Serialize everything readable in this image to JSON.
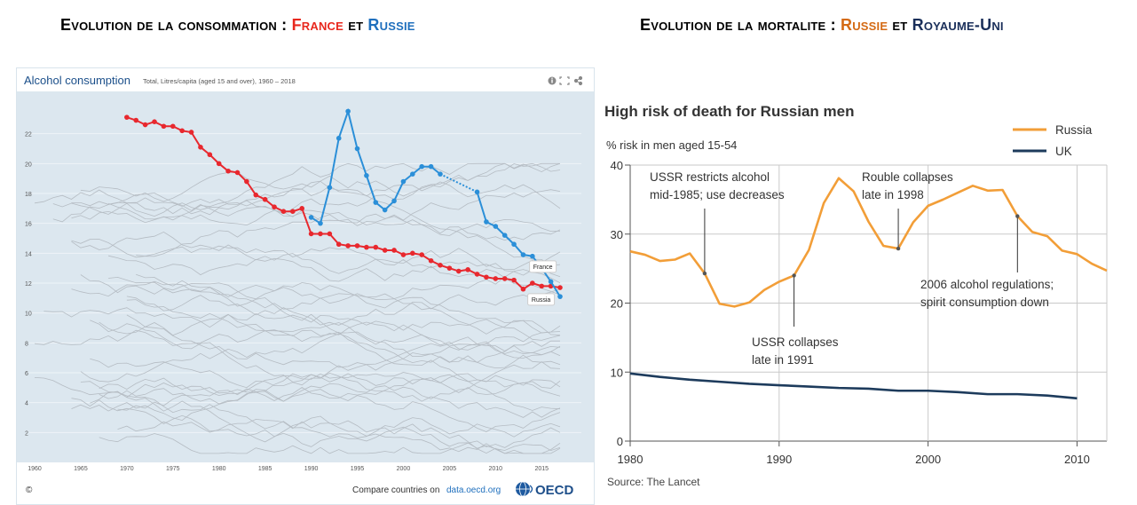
{
  "headings": {
    "left": {
      "prefix": "Evolution de la consommation : ",
      "a": "France",
      "mid": " et ",
      "b": "Russie"
    },
    "right": {
      "prefix": "Evolution de la mortalite : ",
      "a": "Russie",
      "mid": " et ",
      "b": "Royaume-Uni"
    }
  },
  "oecd": {
    "title": "Alcohol consumption",
    "subtitle": "Total, Litres/capita (aged 15 and over), 1960 – 2018",
    "footer_left": "©",
    "footer_compare": "Compare countries on",
    "footer_link": "data.oecd.org",
    "logo_text": "OECD",
    "colors": {
      "france": "#e8282e",
      "russia": "#2b8fd8",
      "other": "#b5bcc3",
      "bg": "#dce7ef"
    }
  },
  "bbc": {
    "title": "High risk of death for Russian men",
    "subtitle": "% risk in men aged 15-54",
    "source": "Source: The Lancet",
    "colors": {
      "russia": "#f29e38",
      "uk": "#1d3b5c"
    },
    "annotations": [
      {
        "id": "ann1",
        "lines": [
          "USSR restricts alcohol",
          "mid-1985; use decreases"
        ]
      },
      {
        "id": "ann2",
        "lines": [
          "Rouble collapses",
          "late in 1998"
        ]
      },
      {
        "id": "ann3",
        "lines": [
          "USSR collapses",
          "late in 1991"
        ]
      },
      {
        "id": "ann4",
        "lines": [
          "2006 alcohol regulations;",
          "spirit consumption down"
        ]
      }
    ]
  },
  "chart_data": [
    {
      "type": "line",
      "title": "Alcohol consumption",
      "subtitle": "Total, Litres/capita (aged 15 and over), 1960 – 2018",
      "xlim": [
        1960,
        2018
      ],
      "ylim": [
        0,
        24
      ],
      "xticks": [
        1960,
        1965,
        1970,
        1975,
        1980,
        1985,
        1990,
        1995,
        2000,
        2005,
        2010,
        2015
      ],
      "yticks": [
        2,
        4,
        6,
        8,
        10,
        12,
        14,
        16,
        18,
        20,
        22
      ],
      "grid": true,
      "series": [
        {
          "name": "France",
          "x": [
            1970,
            1971,
            1972,
            1973,
            1974,
            1975,
            1976,
            1977,
            1978,
            1979,
            1980,
            1981,
            1982,
            1983,
            1984,
            1985,
            1986,
            1987,
            1988,
            1989,
            1990,
            1991,
            1992,
            1993,
            1994,
            1995,
            1996,
            1997,
            1998,
            1999,
            2000,
            2001,
            2002,
            2003,
            2004,
            2005,
            2006,
            2007,
            2008,
            2009,
            2010,
            2011,
            2012,
            2013,
            2014,
            2015,
            2016,
            2017
          ],
          "values": [
            23.1,
            22.9,
            22.6,
            22.8,
            22.5,
            22.5,
            22.2,
            22.1,
            21.1,
            20.6,
            20.0,
            19.5,
            19.4,
            18.8,
            17.9,
            17.6,
            17.1,
            16.8,
            16.8,
            17.0,
            15.3,
            15.3,
            15.3,
            14.6,
            14.5,
            14.5,
            14.4,
            14.4,
            14.2,
            14.2,
            13.9,
            14.0,
            13.9,
            13.5,
            13.2,
            13.0,
            12.8,
            12.9,
            12.6,
            12.4,
            12.3,
            12.3,
            12.2,
            11.6,
            12.0,
            11.8,
            11.8,
            11.7
          ]
        },
        {
          "name": "Russia",
          "x": [
            1990,
            1991,
            1992,
            1993,
            1994,
            1995,
            1996,
            1997,
            1998,
            1999,
            2000,
            2001,
            2002,
            2003,
            2004,
            2008,
            2009,
            2010,
            2011,
            2012,
            2013,
            2014,
            2015,
            2016,
            2017
          ],
          "values": [
            16.4,
            16.0,
            18.4,
            21.7,
            23.5,
            21.0,
            19.2,
            17.4,
            16.9,
            17.5,
            18.8,
            19.3,
            19.8,
            19.8,
            19.3,
            18.1,
            16.1,
            15.8,
            15.2,
            14.6,
            13.9,
            13.8,
            13.0,
            12.1,
            11.1
          ]
        }
      ]
    },
    {
      "type": "line",
      "title": "High risk of death for Russian men",
      "ylabel": "% risk in men aged 15-54",
      "xlim": [
        1980,
        2012
      ],
      "ylim": [
        0,
        40
      ],
      "xticks": [
        1980,
        1990,
        2000,
        2010
      ],
      "yticks": [
        0,
        10,
        20,
        30,
        40
      ],
      "grid": true,
      "legend": "top-right",
      "series": [
        {
          "name": "Russia",
          "x": [
            1980,
            1981,
            1982,
            1983,
            1984,
            1985,
            1986,
            1987,
            1988,
            1989,
            1990,
            1991,
            1992,
            1993,
            1994,
            1995,
            1996,
            1997,
            1998,
            1999,
            2000,
            2001,
            2002,
            2003,
            2004,
            2005,
            2006,
            2007,
            2008,
            2009,
            2010,
            2011,
            2012
          ],
          "values": [
            27.5,
            27.0,
            26.1,
            26.3,
            27.2,
            24.3,
            19.9,
            19.5,
            20.1,
            21.9,
            23.1,
            24.0,
            27.7,
            34.5,
            38.1,
            36.2,
            31.8,
            28.3,
            27.9,
            31.7,
            34.1,
            35.0,
            36.0,
            37.0,
            36.3,
            36.4,
            32.6,
            30.3,
            29.7,
            27.6,
            27.1,
            25.7,
            24.7
          ]
        },
        {
          "name": "UK",
          "x": [
            1980,
            1982,
            1984,
            1986,
            1988,
            1990,
            1992,
            1994,
            1996,
            1998,
            2000,
            2002,
            2004,
            2006,
            2008,
            2010
          ],
          "values": [
            9.8,
            9.3,
            8.9,
            8.6,
            8.3,
            8.1,
            7.9,
            7.7,
            7.6,
            7.3,
            7.3,
            7.1,
            6.8,
            6.8,
            6.6,
            6.2
          ]
        }
      ],
      "annotations": [
        {
          "text": "USSR restricts alcohol mid-1985; use decreases",
          "x": 1985,
          "y": 24.3
        },
        {
          "text": "Rouble collapses late in 1998",
          "x": 1998,
          "y": 27.9
        },
        {
          "text": "USSR collapses late in 1991",
          "x": 1991,
          "y": 24.0
        },
        {
          "text": "2006 alcohol regulations; spirit consumption down",
          "x": 2006,
          "y": 32.6
        }
      ],
      "source": "Source: The Lancet"
    }
  ]
}
